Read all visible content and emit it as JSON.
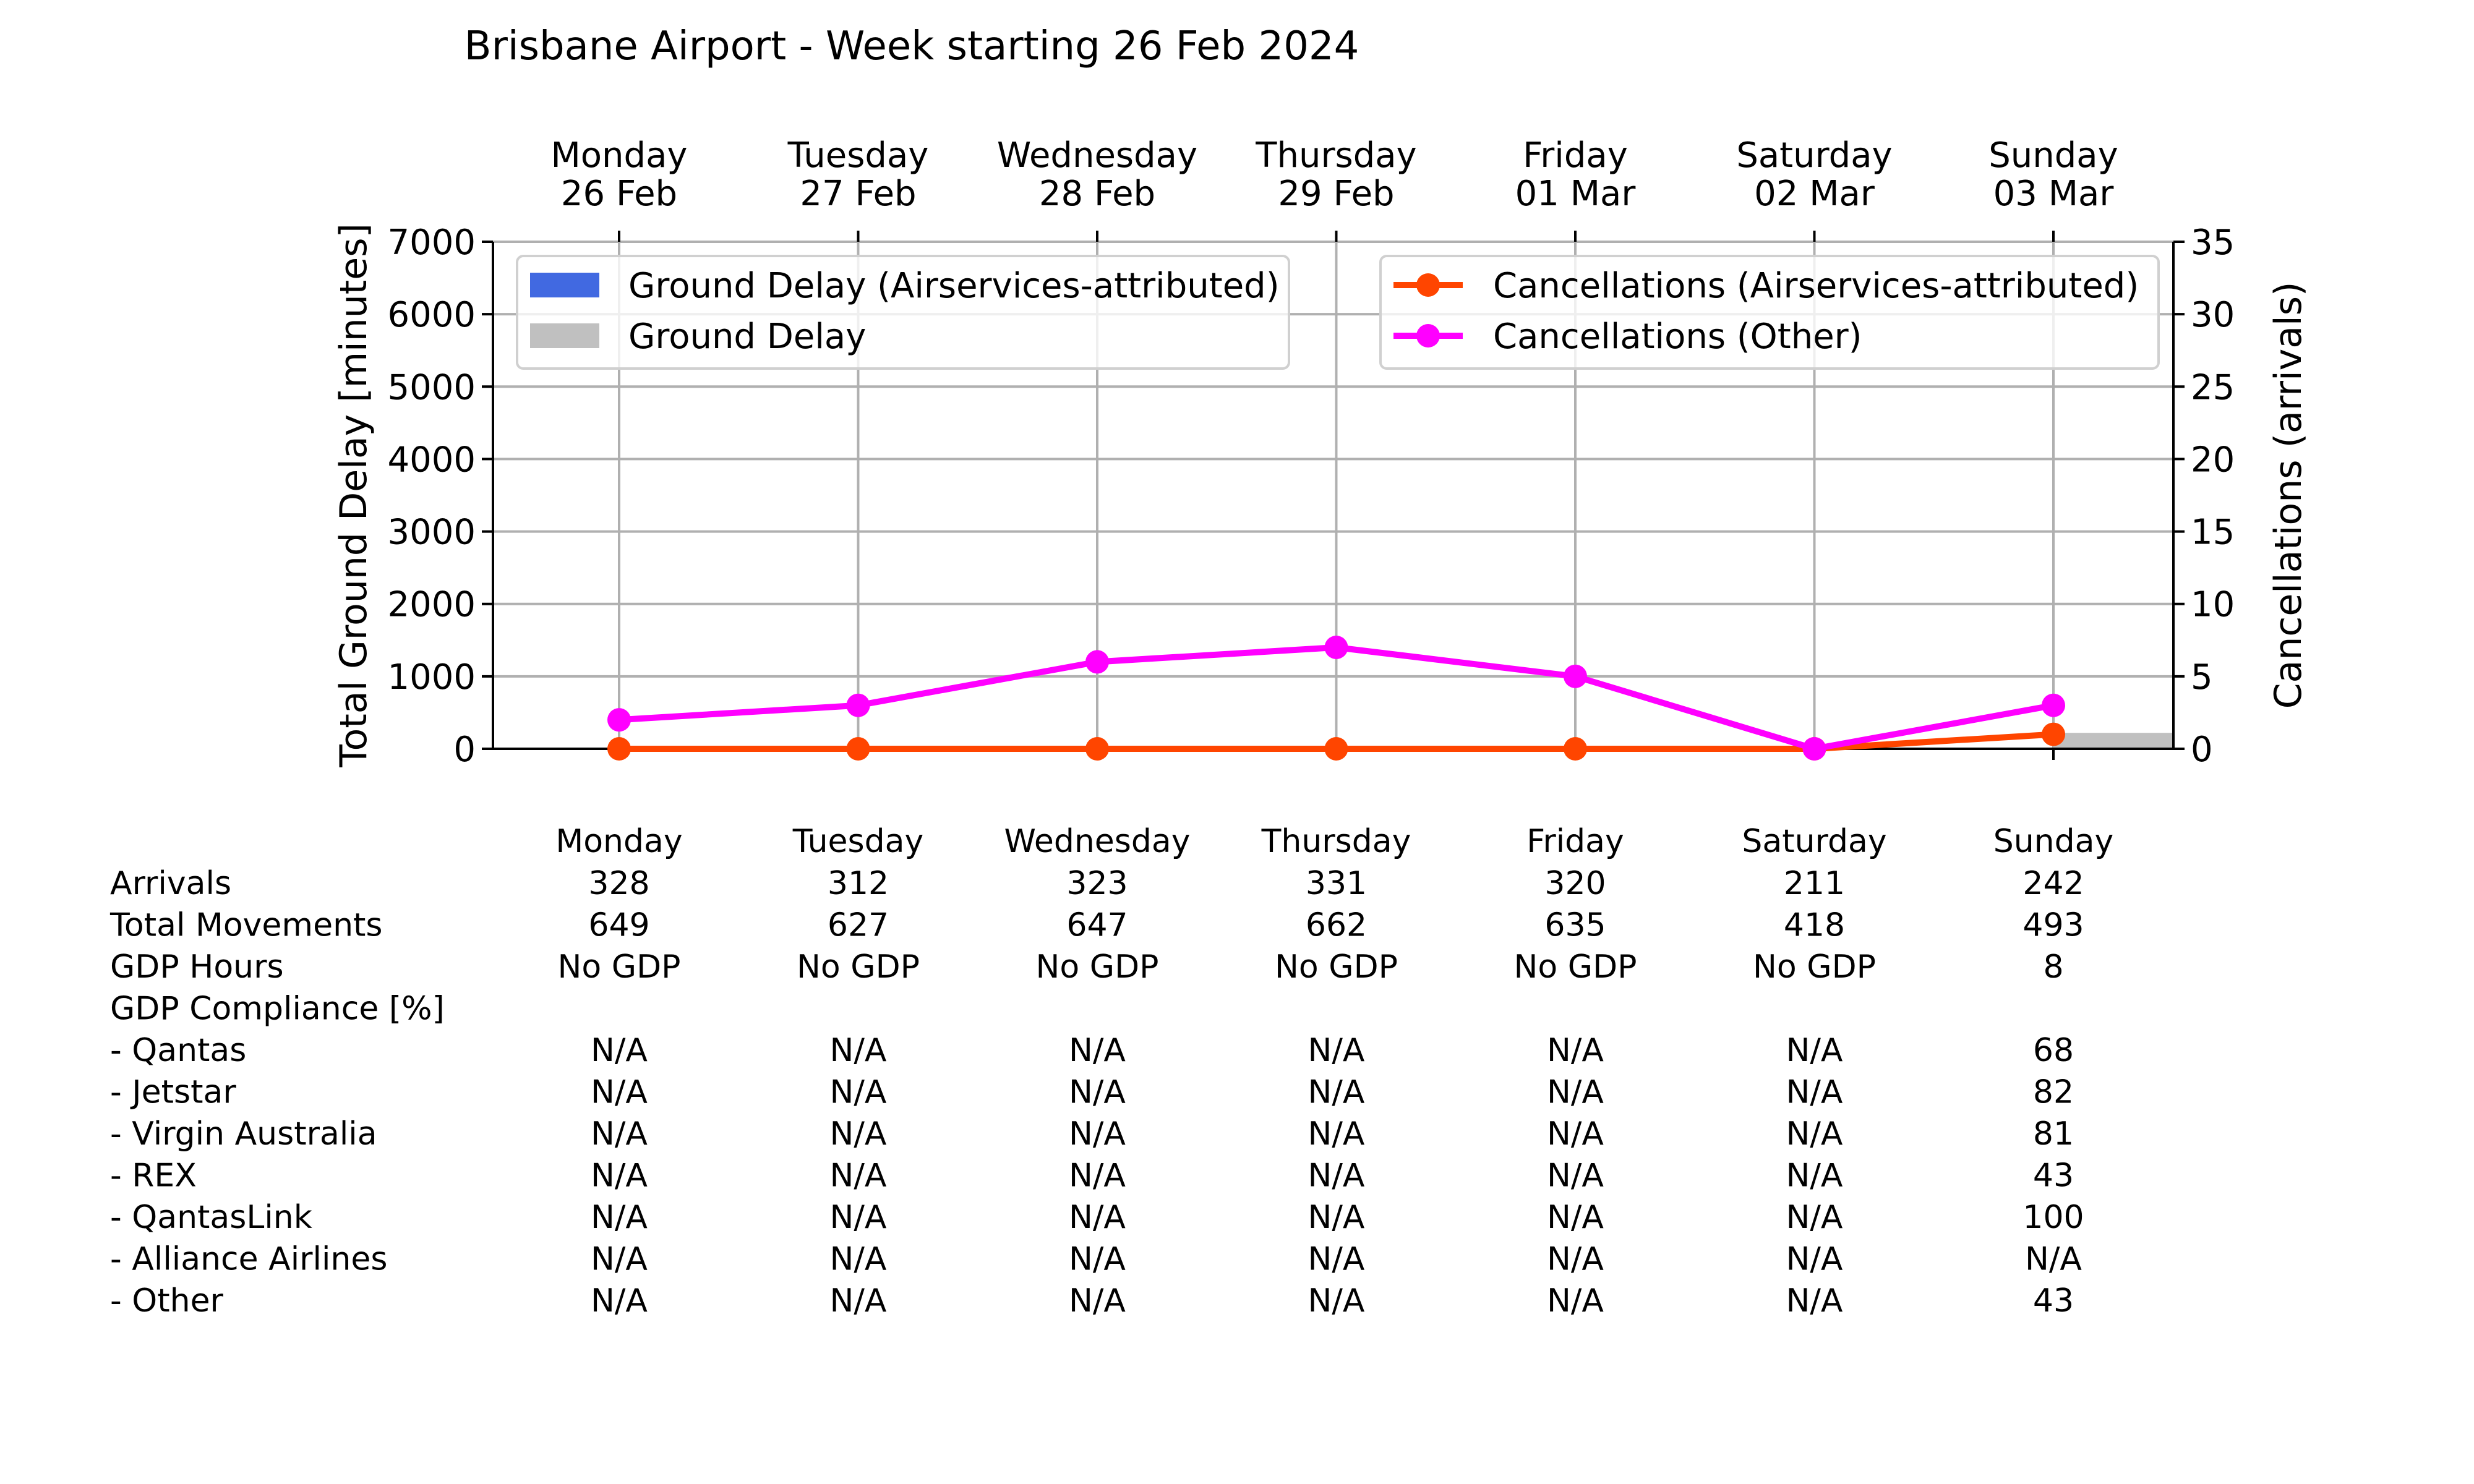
{
  "chart_data": {
    "type": "line",
    "title": "Brisbane Airport - Week starting 26 Feb 2024",
    "days": [
      {
        "name": "Monday",
        "date": "26 Feb"
      },
      {
        "name": "Tuesday",
        "date": "27 Feb"
      },
      {
        "name": "Wednesday",
        "date": "28 Feb"
      },
      {
        "name": "Thursday",
        "date": "29 Feb"
      },
      {
        "name": "Friday",
        "date": "01 Mar"
      },
      {
        "name": "Saturday",
        "date": "02 Mar"
      },
      {
        "name": "Sunday",
        "date": "03 Mar"
      }
    ],
    "y_left": {
      "label": "Total Ground Delay [minutes]",
      "ylim": [
        0,
        7000
      ],
      "ticks": [
        0,
        1000,
        2000,
        3000,
        4000,
        5000,
        6000,
        7000
      ]
    },
    "y_right": {
      "label": "Cancellations (arrivals)",
      "ylim": [
        0,
        35
      ],
      "ticks": [
        0,
        5,
        10,
        15,
        20,
        25,
        30,
        35
      ]
    },
    "grid": true,
    "bar_series": [
      {
        "name": "Ground Delay (Airservices-attributed)",
        "color": "#4169e1",
        "values": [
          0,
          0,
          0,
          0,
          0,
          0,
          0
        ]
      },
      {
        "name": "Ground Delay",
        "color": "#c0c0c0",
        "values": [
          0,
          0,
          0,
          0,
          0,
          0,
          220
        ]
      }
    ],
    "line_series": [
      {
        "name": "Cancellations (Airservices-attributed)",
        "color": "#ff4500",
        "values": [
          0,
          0,
          0,
          0,
          0,
          0,
          1
        ]
      },
      {
        "name": "Cancellations (Other)",
        "color": "#ff00ff",
        "values": [
          2,
          3,
          6,
          7,
          5,
          0,
          3
        ]
      }
    ],
    "legend_left_placement": "upper-left",
    "legend_right_placement": "upper-right",
    "table": {
      "headers": [
        "Monday",
        "Tuesday",
        "Wednesday",
        "Thursday",
        "Friday",
        "Saturday",
        "Sunday"
      ],
      "rows": [
        {
          "label": "Arrivals",
          "values": [
            "328",
            "312",
            "323",
            "331",
            "320",
            "211",
            "242"
          ]
        },
        {
          "label": "Total Movements",
          "values": [
            "649",
            "627",
            "647",
            "662",
            "635",
            "418",
            "493"
          ]
        },
        {
          "label": "GDP Hours",
          "values": [
            "No GDP",
            "No GDP",
            "No GDP",
            "No GDP",
            "No GDP",
            "No GDP",
            "8"
          ]
        },
        {
          "label": "GDP Compliance [%]",
          "values": [
            "",
            "",
            "",
            "",
            "",
            "",
            ""
          ]
        },
        {
          "label": "  - Qantas",
          "values": [
            "N/A",
            "N/A",
            "N/A",
            "N/A",
            "N/A",
            "N/A",
            "68"
          ]
        },
        {
          "label": "  - Jetstar",
          "values": [
            "N/A",
            "N/A",
            "N/A",
            "N/A",
            "N/A",
            "N/A",
            "82"
          ]
        },
        {
          "label": "  - Virgin Australia",
          "values": [
            "N/A",
            "N/A",
            "N/A",
            "N/A",
            "N/A",
            "N/A",
            "81"
          ]
        },
        {
          "label": "  - REX",
          "values": [
            "N/A",
            "N/A",
            "N/A",
            "N/A",
            "N/A",
            "N/A",
            "43"
          ]
        },
        {
          "label": "  - QantasLink",
          "values": [
            "N/A",
            "N/A",
            "N/A",
            "N/A",
            "N/A",
            "N/A",
            "100"
          ]
        },
        {
          "label": "  - Alliance Airlines",
          "values": [
            "N/A",
            "N/A",
            "N/A",
            "N/A",
            "N/A",
            "N/A",
            "N/A"
          ]
        },
        {
          "label": "  - Other",
          "values": [
            "N/A",
            "N/A",
            "N/A",
            "N/A",
            "N/A",
            "N/A",
            "43"
          ]
        }
      ]
    }
  }
}
